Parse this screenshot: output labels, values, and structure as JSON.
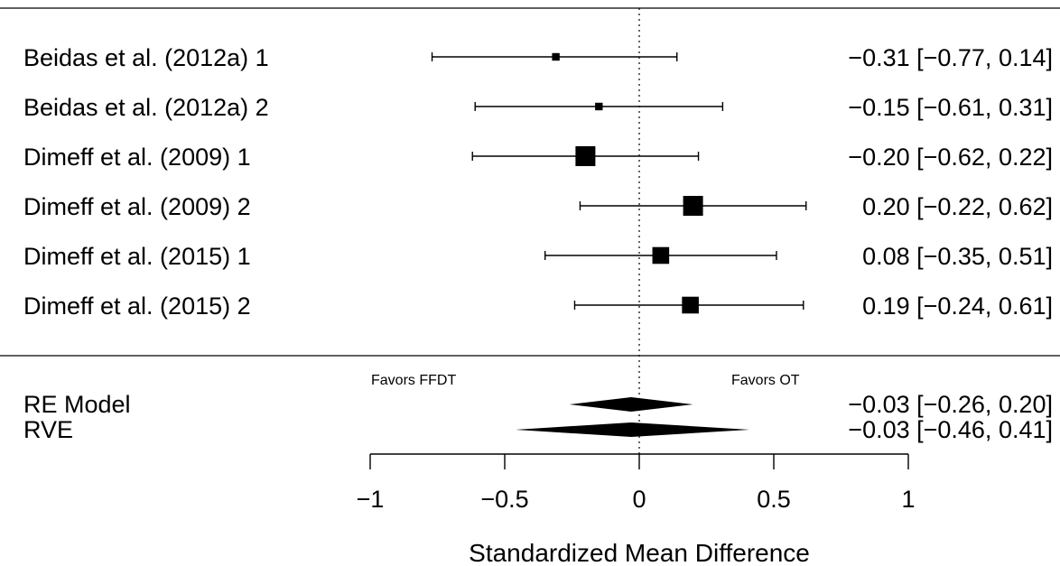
{
  "chart_data": {
    "type": "forest",
    "xlabel": "Standardized Mean Difference",
    "xlim": [
      -1,
      1
    ],
    "xticks": [
      -1,
      -0.5,
      0,
      0.5,
      1
    ],
    "xtick_labels": [
      "−1",
      "−0.5",
      "0",
      "0.5",
      "1"
    ],
    "reference_line": 0,
    "favors": {
      "left": "Favors FFDT",
      "right": "Favors OT"
    },
    "studies": [
      {
        "label": "Beidas et al. (2012a) 1",
        "estimate": -0.31,
        "lower": -0.77,
        "upper": 0.14,
        "ci_text": "−0.31 [−0.77, 0.14]",
        "weight": 0.2
      },
      {
        "label": "Beidas et al. (2012a) 2",
        "estimate": -0.15,
        "lower": -0.61,
        "upper": 0.31,
        "ci_text": "−0.15 [−0.61, 0.31]",
        "weight": 0.2
      },
      {
        "label": "Dimeff et al. (2009) 1",
        "estimate": -0.2,
        "lower": -0.62,
        "upper": 0.22,
        "ci_text": "−0.20 [−0.62, 0.22]",
        "weight": 1.0
      },
      {
        "label": "Dimeff et al. (2009) 2",
        "estimate": 0.2,
        "lower": -0.22,
        "upper": 0.62,
        "ci_text": "0.20 [−0.22, 0.62]",
        "weight": 1.0
      },
      {
        "label": "Dimeff et al. (2015) 1",
        "estimate": 0.08,
        "lower": -0.35,
        "upper": 0.51,
        "ci_text": "0.08 [−0.35, 0.51]",
        "weight": 0.8
      },
      {
        "label": "Dimeff et al. (2015) 2",
        "estimate": 0.19,
        "lower": -0.24,
        "upper": 0.61,
        "ci_text": "0.19 [−0.24, 0.61]",
        "weight": 0.8
      }
    ],
    "summaries": [
      {
        "label": "RE Model",
        "estimate": -0.03,
        "lower": -0.26,
        "upper": 0.2,
        "ci_text": "−0.03 [−0.26, 0.20]"
      },
      {
        "label": "RVE",
        "estimate": -0.03,
        "lower": -0.46,
        "upper": 0.41,
        "ci_text": "−0.03 [−0.46, 0.41]"
      }
    ],
    "grid": false
  }
}
